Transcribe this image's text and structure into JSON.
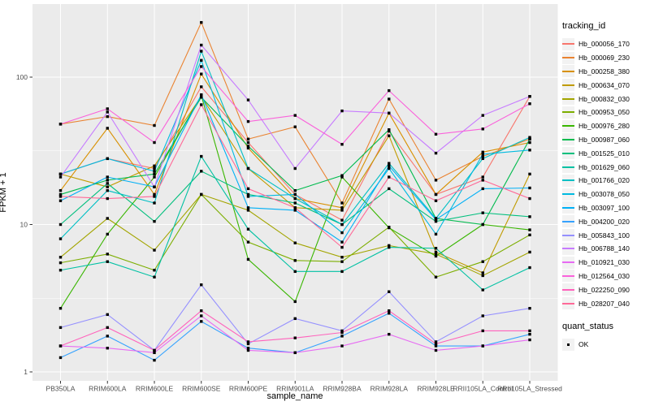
{
  "legend": {
    "tracking_title": "tracking_id",
    "quant_title": "quant_status",
    "quant_ok_label": "OK"
  },
  "colors": {
    "panel_bg": "#EBEBEB",
    "grid_major": "#FFFFFF",
    "grid_minor": "#F7F7F7",
    "tick_text": "#4D4D4D",
    "tick_mark": "#333333",
    "point": "#000000",
    "legend_key_bg": "#F2F2F2"
  },
  "chart_data": {
    "type": "line",
    "title": "",
    "xlabel": "sample_name",
    "ylabel": "FPKM + 1",
    "y_scale": "log10",
    "ylim": [
      1,
      300
    ],
    "yticks": [
      1,
      10,
      100
    ],
    "grid": "on",
    "legend_position": "right",
    "point_style": "black filled square (quant_status OK)",
    "categories": [
      "PB350LA",
      "RRIM600LA",
      "RRIM600LE",
      "RRIM600SE",
      "RRIM600PE",
      "RRIM901LA",
      "RRIM928BA",
      "RRIM928LA",
      "RRIM928LE",
      "RRII105LA_Control",
      "RRII105LA_Stressed"
    ],
    "series": [
      {
        "name": "Hb_000056_170",
        "color": "#F8766D",
        "values": [
          22,
          28,
          24,
          86,
          36,
          16,
          10.7,
          43,
          16,
          21,
          74
        ]
      },
      {
        "name": "Hb_000069_230",
        "color": "#EA8331",
        "values": [
          48,
          54,
          47,
          235,
          38,
          46,
          14,
          71,
          20,
          29,
          38
        ]
      },
      {
        "name": "Hb_000258_380",
        "color": "#D89000",
        "values": [
          17,
          45,
          16,
          105,
          33,
          15,
          13,
          57,
          16,
          31,
          36
        ]
      },
      {
        "name": "Hb_000634_070",
        "color": "#C09B00",
        "values": [
          22,
          18,
          25,
          74,
          24,
          13,
          12.5,
          40,
          6.5,
          4.7,
          22
        ]
      },
      {
        "name": "Hb_000832_030",
        "color": "#A3A500",
        "values": [
          6,
          11,
          6.7,
          16,
          12.5,
          7.5,
          6,
          7.2,
          6.3,
          4.5,
          6.5
        ]
      },
      {
        "name": "Hb_000953_050",
        "color": "#7CAE00",
        "values": [
          5.5,
          6.3,
          4.9,
          16,
          7.6,
          5.7,
          5.6,
          9.6,
          4.4,
          5.6,
          8.5
        ]
      },
      {
        "name": "Hb_000976_280",
        "color": "#39B600",
        "values": [
          2.7,
          8.6,
          21,
          75,
          5.8,
          3,
          21,
          9.5,
          6.1,
          10,
          9.2
        ]
      },
      {
        "name": "Hb_000987_060",
        "color": "#00BB4E",
        "values": [
          16,
          20,
          22,
          73,
          34,
          17,
          21.5,
          44,
          11,
          10,
          38
        ]
      },
      {
        "name": "Hb_001525_010",
        "color": "#00BF7D",
        "values": [
          10,
          19,
          10.5,
          23,
          16,
          14,
          10,
          17.5,
          10.5,
          12,
          11.3
        ]
      },
      {
        "name": "Hb_001629_060",
        "color": "#00C1A3",
        "values": [
          4.9,
          5.6,
          4.4,
          29,
          9.3,
          4.8,
          4.8,
          7,
          6.9,
          3.6,
          5.1
        ]
      },
      {
        "name": "Hb_001766_020",
        "color": "#00BFC4",
        "values": [
          8,
          17,
          14,
          150,
          24,
          15,
          10,
          26,
          11,
          28,
          39
        ]
      },
      {
        "name": "Hb_003078_050",
        "color": "#00BAE0",
        "values": [
          22,
          28,
          23,
          130,
          15.5,
          16,
          8.8,
          24,
          8.6,
          30,
          32
        ]
      },
      {
        "name": "Hb_003097_100",
        "color": "#00B0F6",
        "values": [
          14.5,
          21,
          18,
          76,
          13,
          12.5,
          7.6,
          25,
          10.8,
          17.5,
          17.7
        ]
      },
      {
        "name": "Hb_004200_020",
        "color": "#35A2FF",
        "values": [
          1.25,
          1.75,
          1.2,
          2.2,
          1.45,
          1.35,
          1.75,
          2.5,
          1.5,
          1.5,
          1.8
        ]
      },
      {
        "name": "Hb_005843_100",
        "color": "#9590FF",
        "values": [
          2,
          2.45,
          1.4,
          3.9,
          1.55,
          2.3,
          1.9,
          3.5,
          1.6,
          2.4,
          2.7
        ]
      },
      {
        "name": "Hb_006788_140",
        "color": "#C77CFF",
        "values": [
          21,
          58,
          18,
          165,
          70,
          24,
          59,
          57,
          30.5,
          55,
          74
        ]
      },
      {
        "name": "Hb_010921_030",
        "color": "#E76BF3",
        "values": [
          1.5,
          1.45,
          1.35,
          2.4,
          1.4,
          1.35,
          1.5,
          1.8,
          1.4,
          1.5,
          1.65
        ]
      },
      {
        "name": "Hb_012564_030",
        "color": "#FA62DB",
        "values": [
          48,
          61,
          36,
          118,
          50,
          55,
          35,
          81,
          41,
          44.5,
          66
        ]
      },
      {
        "name": "Hb_022250_090",
        "color": "#FF62BC",
        "values": [
          1.5,
          2,
          1.4,
          2.6,
          1.6,
          1.7,
          1.85,
          2.6,
          1.55,
          1.9,
          1.9
        ]
      },
      {
        "name": "Hb_028207_040",
        "color": "#FF6A98",
        "values": [
          15.5,
          15,
          15.5,
          65,
          17.5,
          13,
          7,
          21,
          14.5,
          20,
          15
        ]
      }
    ]
  }
}
